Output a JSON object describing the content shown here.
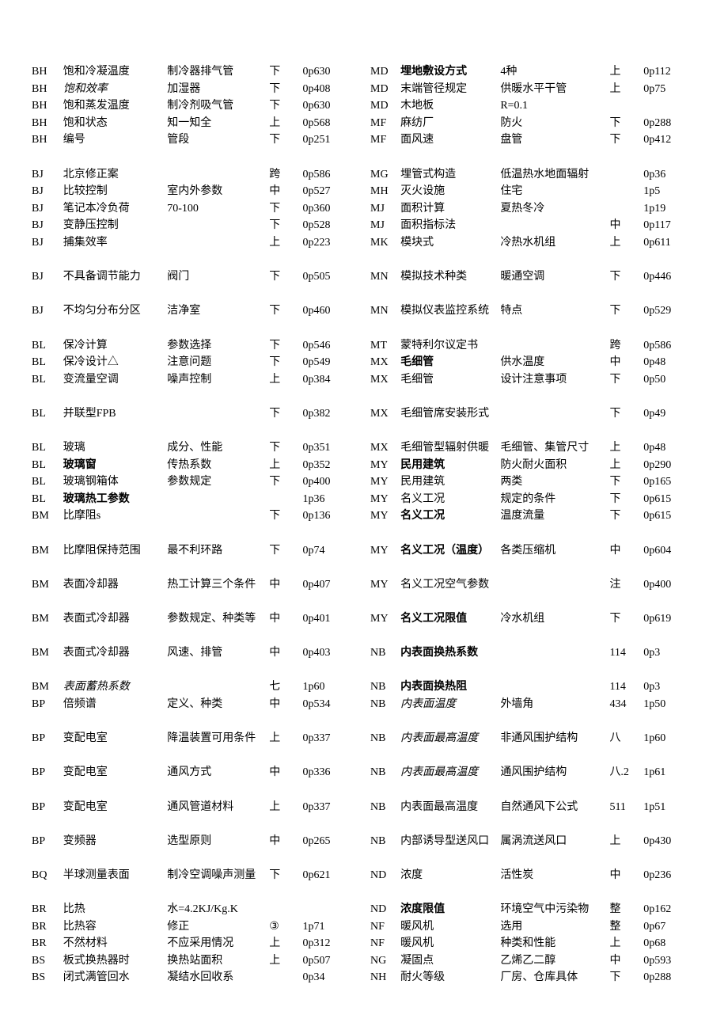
{
  "left": [
    {
      "c1": "BH",
      "c2": "饱和冷凝温度",
      "c3": "制冷器排气管",
      "c4": "下",
      "c5": "0p630"
    },
    {
      "c1": "BH",
      "c2": "饱和效率",
      "c2s": "italic",
      "c3": "加湿器",
      "c4": "下",
      "c5": "0p408"
    },
    {
      "c1": "BH",
      "c2": "饱和蒸发温度",
      "c3": "制冷剂吸气管",
      "c4": "下",
      "c5": "0p630"
    },
    {
      "c1": "BH",
      "c2": "饱和状态",
      "c3": "知一知全",
      "c4": "上",
      "c5": "0p568"
    },
    {
      "c1": "BH",
      "c2": "编号",
      "c3": "管段",
      "c4": "下",
      "c5": "0p251"
    },
    {
      "blank": true
    },
    {
      "c1": "BJ",
      "c2": "北京修正案",
      "c3": "",
      "c4": "跨",
      "c5": "0p586"
    },
    {
      "c1": "BJ",
      "c2": "比较控制",
      "c3": "室内外参数",
      "c4": "中",
      "c5": "0p527"
    },
    {
      "c1": "BJ",
      "c2": "笔记本冷负荷",
      "c3": "70-100",
      "c4": "下",
      "c5": "0p360"
    },
    {
      "c1": "BJ",
      "c2": "变静压控制",
      "c3": "",
      "c4": "下",
      "c5": "0p528"
    },
    {
      "c1": "BJ",
      "c2": "捕集效率",
      "c3": "",
      "c4": "上",
      "c5": "0p223"
    },
    {
      "blank": true
    },
    {
      "c1": "BJ",
      "c2": "不具备调节能力",
      "c3": "阀门",
      "c4": "下",
      "c5": "0p505"
    },
    {
      "blank": true
    },
    {
      "c1": "BJ",
      "c2": "不均匀分布分区",
      "c3": "洁净室",
      "c4": "下",
      "c5": "0p460"
    },
    {
      "blank": true
    },
    {
      "c1": "BL",
      "c2": "保冷计算",
      "c3": "参数选择",
      "c4": "下",
      "c5": "0p546"
    },
    {
      "c1": "BL",
      "c2": "保冷设计△",
      "c3": "注意问题",
      "c4": "下",
      "c5": "0p549"
    },
    {
      "c1": "BL",
      "c2": "变流量空调",
      "c3": "噪声控制",
      "c4": "上",
      "c5": "0p384"
    },
    {
      "blank": true
    },
    {
      "c1": "BL",
      "c2": "并联型FPB",
      "c3": "",
      "c4": "下",
      "c5": "0p382"
    },
    {
      "blank": true
    },
    {
      "c1": "BL",
      "c2": "玻璃",
      "c3": "成分、性能",
      "c4": "下",
      "c5": "0p351"
    },
    {
      "c1": "BL",
      "c2": "玻璃窗",
      "c2s": "bold",
      "c3": "传热系数",
      "c4": "上",
      "c5": "0p352"
    },
    {
      "c1": "BL",
      "c2": "玻璃钢箱体",
      "c3": "参数规定",
      "c4": "下",
      "c5": "0p400"
    },
    {
      "c1": "BL",
      "c2": "玻璃热工参数",
      "c2s": "bold",
      "c3": "",
      "c4": "",
      "c5": "1p36"
    },
    {
      "c1": "BM",
      "c2": "比摩阻s",
      "c3": "",
      "c4": "下",
      "c5": "0p136"
    },
    {
      "blank": true
    },
    {
      "c1": "BM",
      "c2": "比摩阻保持范围",
      "c3": "最不利环路",
      "c4": "下",
      "c5": "0p74"
    },
    {
      "blank": true
    },
    {
      "c1": "BM",
      "c2": "表面冷却器",
      "c3": "热工计算三个条件",
      "c4": "中",
      "c5": "0p407"
    },
    {
      "blank": true
    },
    {
      "c1": "BM",
      "c2": "表面式冷却器",
      "c3": "参数规定、种类等",
      "c4": "中",
      "c5": "0p401"
    },
    {
      "blank": true
    },
    {
      "c1": "BM",
      "c2": "表面式冷却器",
      "c3": "风速、排管",
      "c4": "中",
      "c5": "0p403"
    },
    {
      "blank": true
    },
    {
      "c1": "BM",
      "c2": "表面蓄热系数",
      "c2s": "italic",
      "c3": "",
      "c4": "七",
      "c5": "1p60"
    },
    {
      "c1": "BP",
      "c2": "倍频谱",
      "c3": "定义、种类",
      "c4": "中",
      "c5": "0p534"
    },
    {
      "blank": true
    },
    {
      "c1": "BP",
      "c2": "变配电室",
      "c3": "降温装置可用条件",
      "c4": "上",
      "c5": "0p337"
    },
    {
      "blank": true
    },
    {
      "c1": "BP",
      "c2": "变配电室",
      "c3": "通风方式",
      "c4": "中",
      "c5": "0p336"
    },
    {
      "blank": true
    },
    {
      "c1": "BP",
      "c2": "变配电室",
      "c3": "通风管道材料",
      "c4": "上",
      "c5": "0p337"
    },
    {
      "blank": true
    },
    {
      "c1": "BP",
      "c2": "变频器",
      "c3": "选型原则",
      "c4": "中",
      "c5": "0p265"
    },
    {
      "blank": true
    },
    {
      "c1": "BQ",
      "c2": "半球测量表面",
      "c3": "制冷空调噪声测量",
      "c4": "下",
      "c5": "0p621"
    },
    {
      "blank": true
    },
    {
      "c1": "BR",
      "c2": "比热",
      "c3": "水=4.2KJ/Kg.K",
      "c4": "",
      "c5": ""
    },
    {
      "c1": "BR",
      "c2": "比热容",
      "c3": "修正",
      "c4": "③",
      "c5": "1p71"
    },
    {
      "c1": "BR",
      "c2": "不然材料",
      "c3": "不应采用情况",
      "c4": "上",
      "c5": "0p312"
    },
    {
      "c1": "BS",
      "c2": "板式换热器时",
      "c3": "换热站面积",
      "c4": "上",
      "c5": "0p507"
    },
    {
      "c1": "BS",
      "c2": "闭式满管回水",
      "c3": "凝结水回收系",
      "c4": "",
      "c5": "0p34"
    }
  ],
  "right": [
    {
      "c1": "MD",
      "c2": "埋地敷设方式",
      "c2s": "bold",
      "c3": "4种",
      "c4": "上",
      "c5": "0p112"
    },
    {
      "c1": "MD",
      "c2": "末端管径规定",
      "c3": "供暖水平干管",
      "c4": "上",
      "c5": "0p75"
    },
    {
      "c1": "MD",
      "c2": "木地板",
      "c3": "R=0.1",
      "c4": "",
      "c5": ""
    },
    {
      "c1": "MF",
      "c2": "麻纺厂",
      "c3": "防火",
      "c4": "下",
      "c5": "0p288"
    },
    {
      "c1": "MF",
      "c2": "面风速",
      "c3": "盘管",
      "c4": "下",
      "c5": "0p412"
    },
    {
      "blank": true
    },
    {
      "c1": "MG",
      "c2": "埋管式构造",
      "c3": "低温热水地面辐射",
      "c4": "",
      "c5": "0p36"
    },
    {
      "c1": "MH",
      "c2": "灭火设施",
      "c3": "住宅",
      "c4": "",
      "c5": "1p5"
    },
    {
      "c1": "MJ",
      "c2": "面积计算",
      "c3": "夏热冬冷",
      "c4": "",
      "c5": "1p19"
    },
    {
      "c1": "MJ",
      "c2": "面积指标法",
      "c3": "",
      "c4": "中",
      "c5": "0p117"
    },
    {
      "c1": "MK",
      "c2": "模块式",
      "c3": "冷热水机组",
      "c4": "上",
      "c5": "0p611"
    },
    {
      "blank": true
    },
    {
      "c1": "MN",
      "c2": "模拟技术种类",
      "c3": "暖通空调",
      "c4": "下",
      "c5": "0p446"
    },
    {
      "blank": true
    },
    {
      "c1": "MN",
      "c2": "模拟仪表监控系统",
      "c3": "特点",
      "c4": "下",
      "c5": "0p529"
    },
    {
      "blank": true
    },
    {
      "c1": "MT",
      "c2": "蒙特利尔议定书",
      "c3": "",
      "c4": "跨",
      "c5": "0p586"
    },
    {
      "c1": "MX",
      "c2": "毛细管",
      "c2s": "bold",
      "c3": "供水温度",
      "c4": "中",
      "c5": "0p48"
    },
    {
      "c1": "MX",
      "c2": "毛细管",
      "c3": "设计注意事项",
      "c4": "下",
      "c5": "0p50"
    },
    {
      "blank": true
    },
    {
      "c1": "MX",
      "c2": "毛细管席安装形式",
      "c3": "",
      "c4": "下",
      "c5": "0p49"
    },
    {
      "blank": true
    },
    {
      "c1": "MX",
      "c2": "毛细管型辐射供暖",
      "c3": "毛细管、集管尺寸",
      "c4": "上",
      "c5": "0p48"
    },
    {
      "c1": "MY",
      "c2": "民用建筑",
      "c2s": "bold",
      "c3": "防火耐火面积",
      "c4": "上",
      "c5": "0p290"
    },
    {
      "c1": "MY",
      "c2": "民用建筑",
      "c3": "两类",
      "c4": "下",
      "c5": "0p165"
    },
    {
      "c1": "MY",
      "c2": "名义工况",
      "c3": "规定的条件",
      "c4": "下",
      "c5": "0p615"
    },
    {
      "c1": "MY",
      "c2": "名义工况",
      "c2s": "bold",
      "c3": "温度流量",
      "c4": "下",
      "c5": "0p615"
    },
    {
      "blank": true
    },
    {
      "c1": "MY",
      "c2": "名义工况（温度）",
      "c2s": "bold",
      "c3": "各类压缩机",
      "c4": "中",
      "c5": "0p604"
    },
    {
      "blank": true
    },
    {
      "c1": "MY",
      "c2": "名义工况空气参数",
      "c3": "",
      "c4": "注",
      "c5": "0p400"
    },
    {
      "blank": true
    },
    {
      "c1": "MY",
      "c2": "名义工况限值",
      "c2s": "bold",
      "c3": "冷水机组",
      "c4": "下",
      "c5": "0p619"
    },
    {
      "blank": true
    },
    {
      "c1": "NB",
      "c2": "内表面换热系数",
      "c2s": "bold",
      "c3": "",
      "c4": "114",
      "c5": "0p3"
    },
    {
      "blank": true
    },
    {
      "c1": "NB",
      "c2": "内表面换热阻",
      "c2s": "bold",
      "c3": "",
      "c4": "114",
      "c5": "0p3"
    },
    {
      "c1": "NB",
      "c2": "内表面温度",
      "c2s": "italic",
      "c3": "外墙角",
      "c4": "434",
      "c5": "1p50"
    },
    {
      "blank": true
    },
    {
      "c1": "NB",
      "c2": "内表面最高温度",
      "c2s": "italic",
      "c3": "非通风围护结构",
      "c4": "八",
      "c5": "1p60"
    },
    {
      "blank": true
    },
    {
      "c1": "NB",
      "c2": "内表面最高温度",
      "c2s": "italic",
      "c3": "通风围护结构",
      "c4": "八.2",
      "c5": "1p61"
    },
    {
      "blank": true
    },
    {
      "c1": "NB",
      "c2": "内表面最高温度",
      "c3": "自然通风下公式",
      "c4": "511",
      "c5": "1p51"
    },
    {
      "blank": true
    },
    {
      "c1": "NB",
      "c2": "内部诱导型送风口",
      "c3": "属涡流送风口",
      "c4": "上",
      "c5": "0p430"
    },
    {
      "blank": true
    },
    {
      "c1": "ND",
      "c2": "浓度",
      "c3": "活性炭",
      "c4": "中",
      "c5": "0p236"
    },
    {
      "blank": true
    },
    {
      "c1": "ND",
      "c2": "浓度限值",
      "c2s": "bold",
      "c3": "环境空气中污染物",
      "c4": "整",
      "c5": "0p162"
    },
    {
      "c1": "NF",
      "c2": "暖风机",
      "c3": "选用",
      "c4": "整",
      "c5": "0p67"
    },
    {
      "c1": "NF",
      "c2": "暖风机",
      "c3": "种类和性能",
      "c4": "上",
      "c5": "0p68"
    },
    {
      "c1": "NG",
      "c2": "凝固点",
      "c3": "乙烯乙二醇",
      "c4": "中",
      "c5": "0p593"
    },
    {
      "c1": "NH",
      "c2": "耐火等级",
      "c3": "厂房、仓库具体",
      "c4": "下",
      "c5": "0p288"
    }
  ]
}
